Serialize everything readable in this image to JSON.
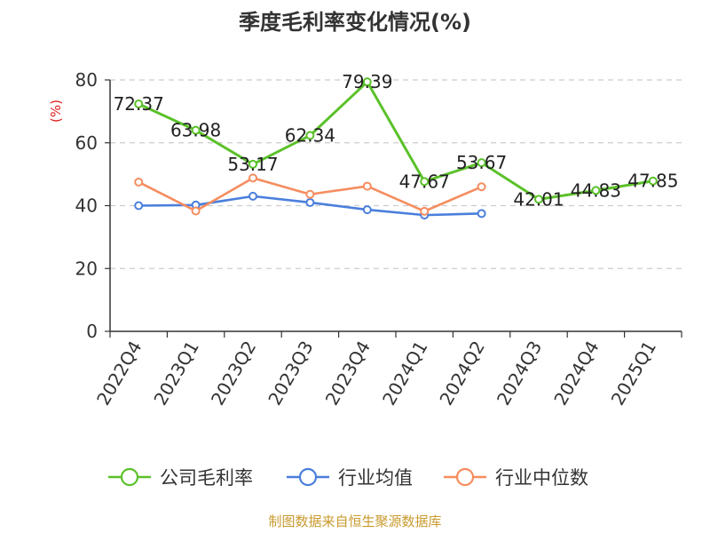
{
  "chart_data": {
    "type": "line",
    "title": "季度毛利率变化情况(%)",
    "ylabel": "(%)",
    "ylim": [
      0,
      80
    ],
    "yticks": [
      0,
      20,
      40,
      60,
      80
    ],
    "grid": true,
    "legend_position": "bottom",
    "categories": [
      "2022Q4",
      "2023Q1",
      "2023Q2",
      "2023Q3",
      "2023Q4",
      "2024Q1",
      "2024Q2",
      "2024Q3",
      "2024Q4",
      "2025Q1"
    ],
    "series": [
      {
        "name": "公司毛利率",
        "color": "#5bc12a",
        "values": [
          72.37,
          63.98,
          53.17,
          62.34,
          79.39,
          47.67,
          53.67,
          42.01,
          44.83,
          47.85
        ],
        "labels": [
          "72.37",
          "63.98",
          "53.17",
          "62.34",
          "79.39",
          "47.67",
          "53.67",
          "42.01",
          "44.83",
          "47.85"
        ]
      },
      {
        "name": "行业均值",
        "color": "#4a7fdc",
        "values": [
          40,
          40.2,
          43,
          41,
          38.7,
          37,
          37.5,
          null,
          null,
          null
        ]
      },
      {
        "name": "行业中位数",
        "color": "#f58d5f",
        "values": [
          47.5,
          38.3,
          48.8,
          43.6,
          46.2,
          38.2,
          46,
          null,
          null,
          null
        ]
      }
    ]
  },
  "source": "制图数据来自恒生聚源数据库",
  "colors": {
    "axis": "#333333",
    "grid": "#cccccc",
    "unit": "#e02020",
    "source": "#c99a2e"
  }
}
